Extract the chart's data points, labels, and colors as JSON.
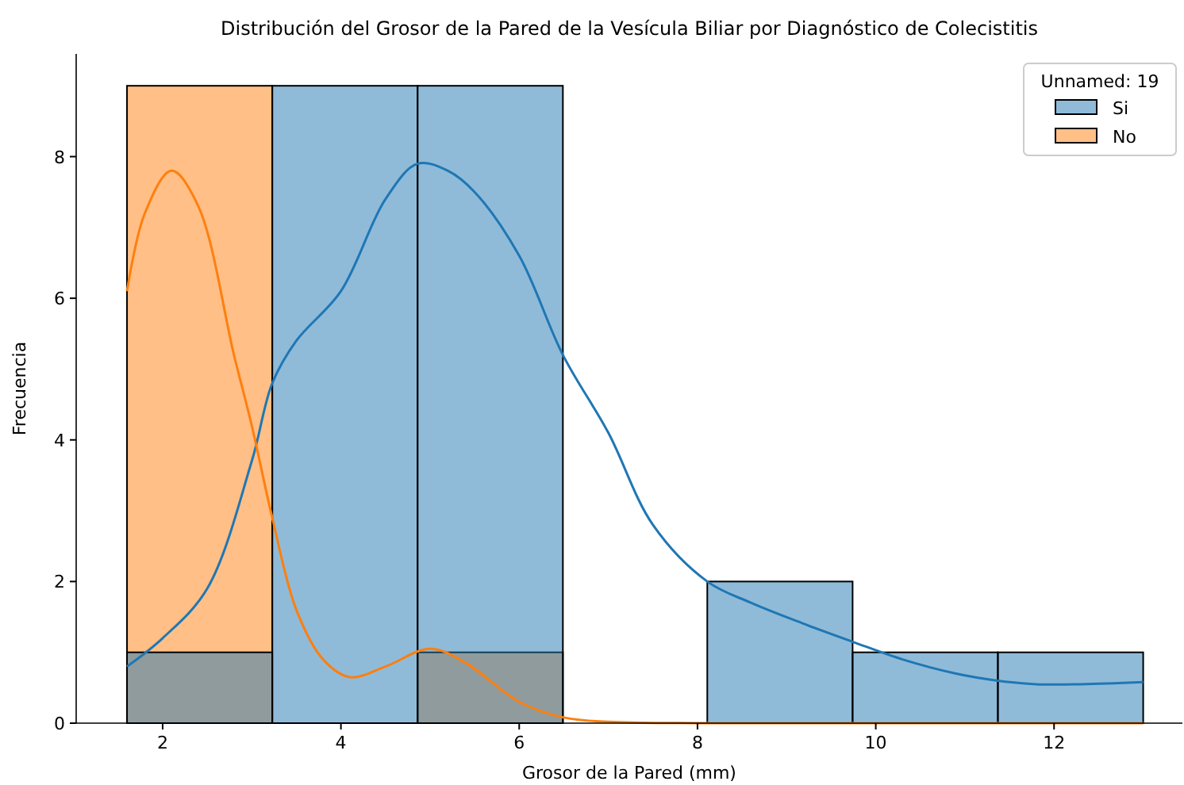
{
  "chart_data": {
    "type": "histogram",
    "title": "Distribución del Grosor de la Pared de la Vesícula Biliar por Diagnóstico de Colecistitis",
    "xlabel": "Grosor de la Pared (mm)",
    "ylabel": "Frecuencia",
    "legend_title": "Unnamed: 19",
    "legend": "top right",
    "grid": false,
    "bins": [
      1.6,
      3.23,
      4.86,
      6.49,
      8.11,
      9.74,
      11.37,
      13.0
    ],
    "xlim": [
      1.03,
      13.44
    ],
    "xticks": [
      2,
      4,
      6,
      8,
      10,
      12
    ],
    "ylim": [
      0,
      9.45
    ],
    "yticks": [
      0,
      2,
      4,
      6,
      8
    ],
    "series": [
      {
        "name": "Si",
        "type": "histogram",
        "color": "#1f77b4",
        "values": [
          1,
          9,
          9,
          0,
          2,
          1,
          1
        ]
      },
      {
        "name": "No",
        "type": "histogram",
        "color": "#ff7f0e",
        "values": [
          9,
          0,
          1,
          0,
          0,
          0,
          0
        ]
      },
      {
        "type": "line",
        "color": "#1f77b4",
        "x": [
          1.6,
          2.0,
          2.5,
          3.0,
          3.23,
          3.5,
          4.0,
          4.5,
          4.86,
          5.2,
          5.5,
          6.0,
          6.49,
          7.0,
          7.5,
          8.11,
          8.6,
          9.2,
          9.74,
          10.3,
          10.9,
          11.37,
          11.8,
          12.3,
          13.0
        ],
        "values": [
          0.8,
          1.2,
          1.9,
          3.7,
          4.8,
          5.4,
          6.1,
          7.4,
          7.9,
          7.8,
          7.5,
          6.6,
          5.2,
          4.1,
          2.8,
          2.0,
          1.7,
          1.4,
          1.15,
          0.9,
          0.7,
          0.6,
          0.55,
          0.55,
          0.58
        ]
      },
      {
        "type": "line",
        "color": "#ff7f0e",
        "x": [
          1.6,
          1.8,
          2.1,
          2.4,
          2.8,
          3.0,
          3.23,
          3.5,
          3.8,
          4.1,
          4.5,
          5.0,
          5.4,
          6.0,
          6.5,
          7.0,
          8.0,
          9.0,
          10.0,
          11.0,
          12.0,
          13.0
        ],
        "values": [
          6.1,
          7.2,
          7.8,
          7.3,
          5.2,
          4.2,
          2.9,
          1.6,
          0.9,
          0.65,
          0.8,
          1.05,
          0.85,
          0.3,
          0.08,
          0.02,
          0,
          0,
          0,
          0,
          0,
          0
        ]
      }
    ]
  }
}
